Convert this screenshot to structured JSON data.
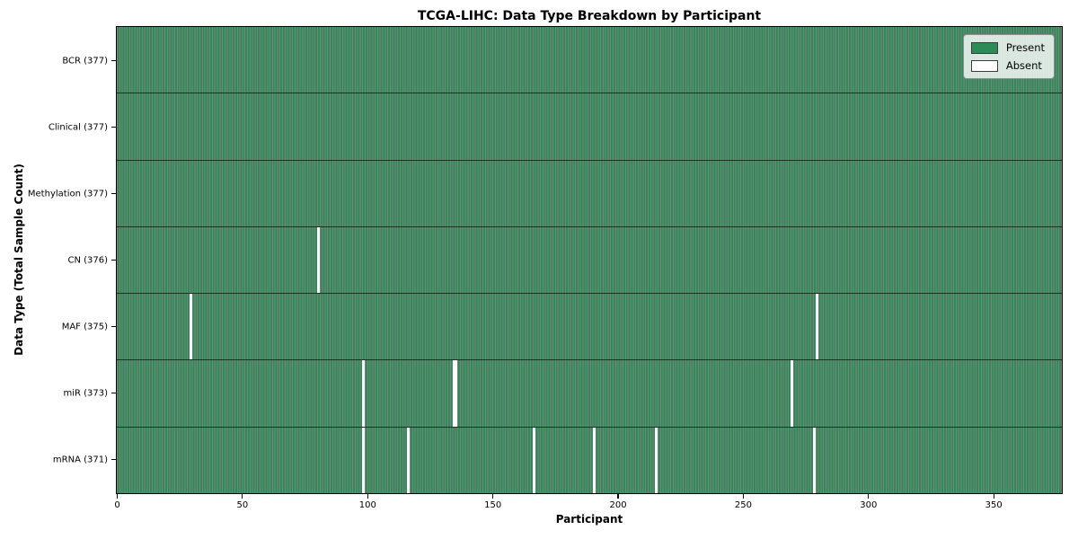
{
  "chart_data": {
    "type": "heatmap",
    "title": "TCGA-LIHC: Data Type Breakdown by Participant",
    "xlabel": "Participant",
    "ylabel": "Data Type (Total Sample Count)",
    "x_ticks": [
      0,
      50,
      100,
      150,
      200,
      250,
      300,
      350
    ],
    "x_range": [
      0,
      377
    ],
    "n_participants": 377,
    "rows": [
      {
        "label": "BCR (377)",
        "data_type": "BCR",
        "total": 377,
        "absent_participants": []
      },
      {
        "label": "Clinical (377)",
        "data_type": "Clinical",
        "total": 377,
        "absent_participants": []
      },
      {
        "label": "Methylation (377)",
        "data_type": "Methylation",
        "total": 377,
        "absent_participants": []
      },
      {
        "label": "CN (376)",
        "data_type": "CN",
        "total": 376,
        "absent_participants": [
          80
        ]
      },
      {
        "label": "MAF (375)",
        "data_type": "MAF",
        "total": 375,
        "absent_participants": [
          29,
          279
        ]
      },
      {
        "label": "miR (373)",
        "data_type": "miR",
        "total": 373,
        "absent_participants": [
          98,
          134,
          135,
          269
        ]
      },
      {
        "label": "mRNA (371)",
        "data_type": "mRNA",
        "total": 371,
        "absent_participants": [
          98,
          116,
          166,
          190,
          215,
          278
        ]
      }
    ],
    "legend": [
      {
        "label": "Present",
        "color": "#2e8b57"
      },
      {
        "label": "Absent",
        "color": "#ffffff"
      }
    ],
    "colors": {
      "present": "#2e8b57",
      "absent": "#ffffff",
      "cell_edge": "rgba(8, 32, 18, 0.55)",
      "row_separator": "rgba(5, 25, 12, 0.75)",
      "spine": "#000000"
    },
    "legend_position": "upper right",
    "grid": false
  }
}
